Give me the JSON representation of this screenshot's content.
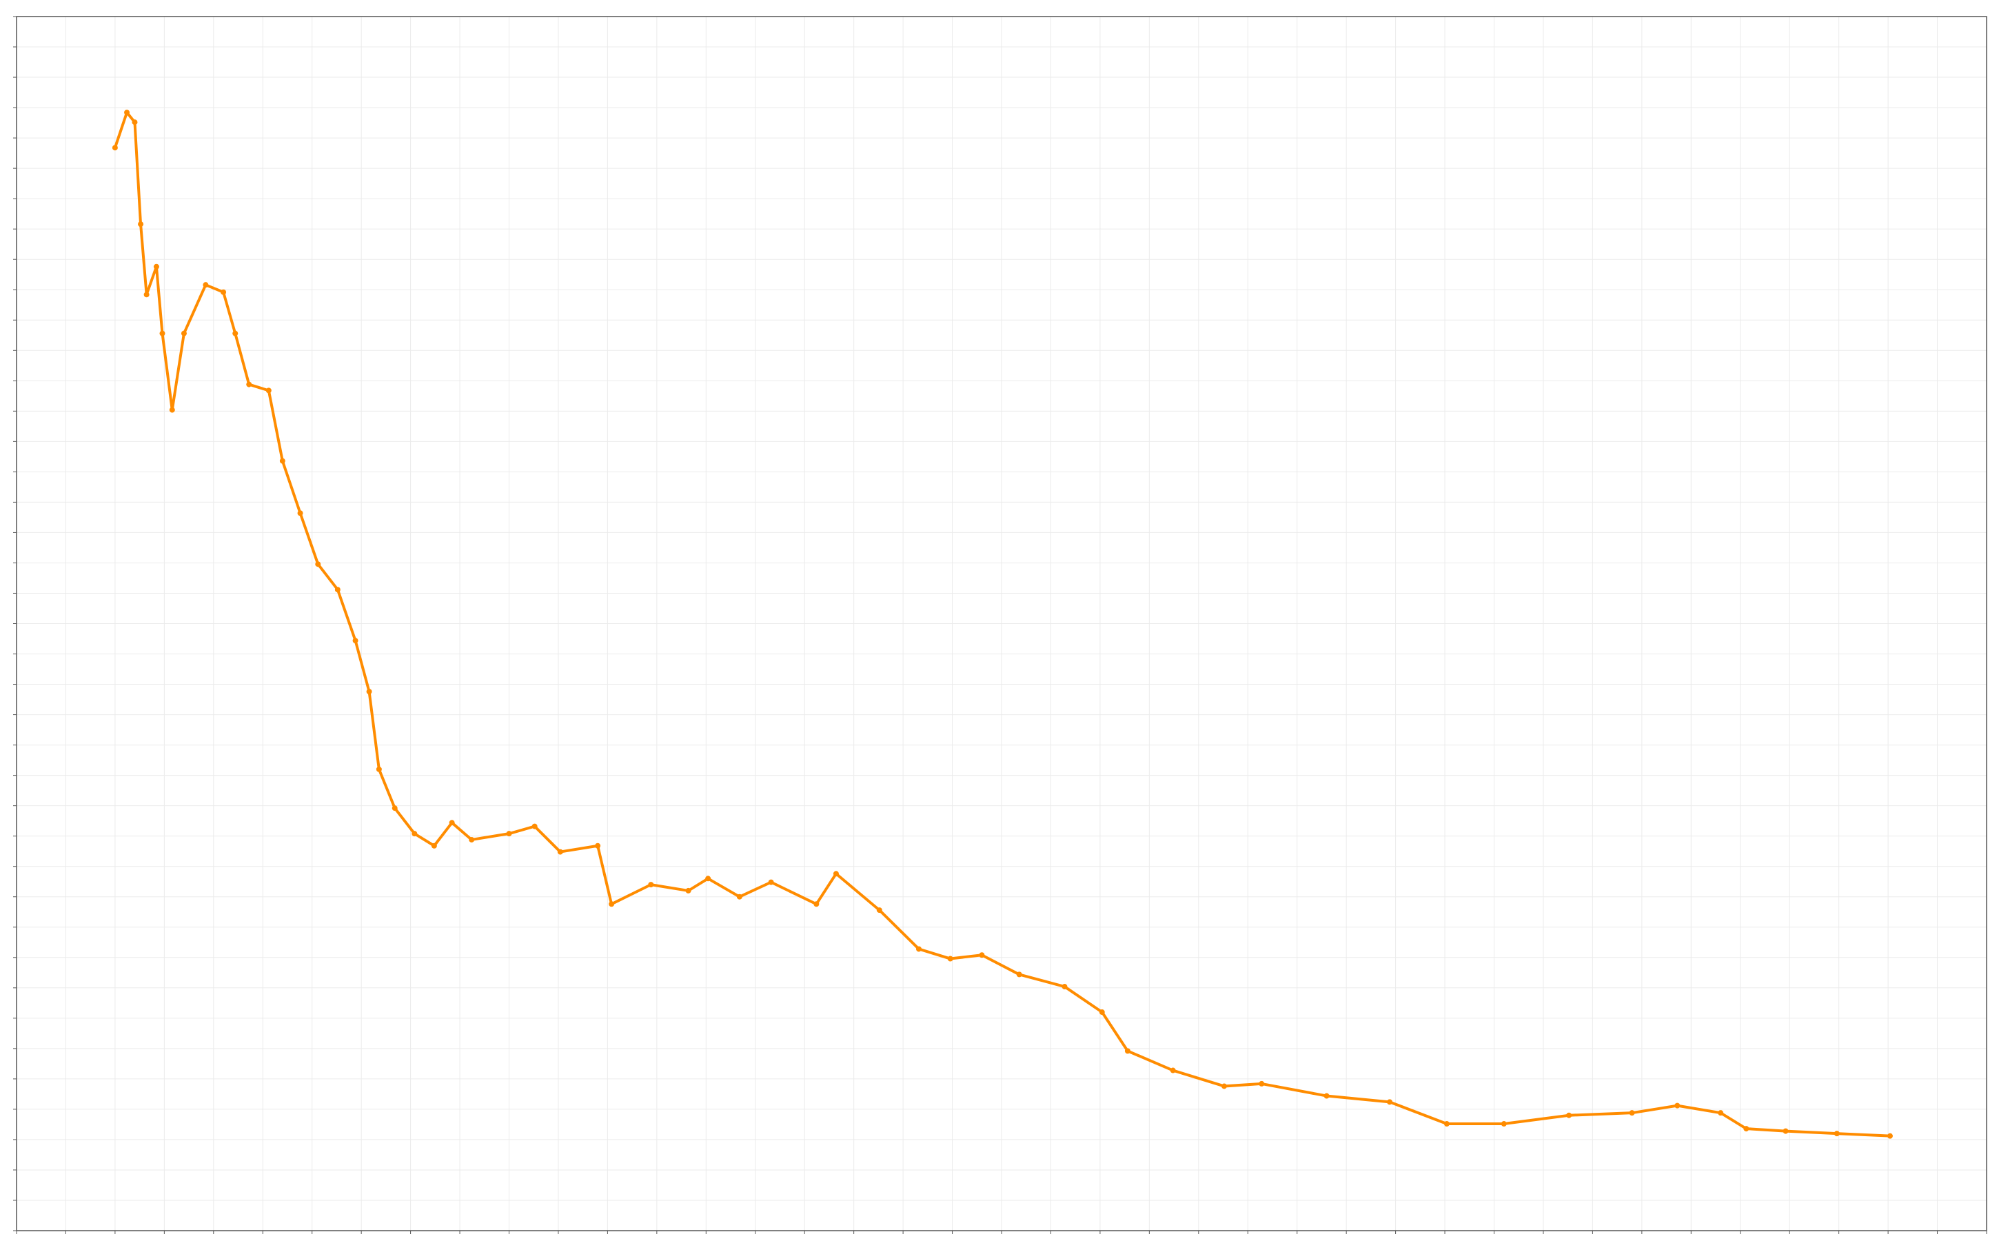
{
  "chart_data": {
    "type": "line",
    "xlim": [
      0,
      100
    ],
    "ylim": [
      0,
      100
    ],
    "xticks": [
      0,
      2.5,
      5,
      7.5,
      10,
      12.5,
      15,
      17.5,
      20,
      22.5,
      25,
      27.5,
      30,
      32.5,
      35,
      37.5,
      40,
      42.5,
      45,
      47.5,
      50,
      52.5,
      55,
      57.5,
      60,
      62.5,
      65,
      67.5,
      70,
      72.5,
      75,
      77.5,
      80,
      82.5,
      85,
      87.5,
      90,
      92.5,
      95,
      97.5,
      100
    ],
    "yticks": [
      0,
      2.5,
      5,
      7.5,
      10,
      12.5,
      15,
      17.5,
      20,
      22.5,
      25,
      27.5,
      30,
      32.5,
      35,
      37.5,
      40,
      42.5,
      45,
      47.5,
      50,
      52.5,
      55,
      57.5,
      60,
      62.5,
      65,
      67.5,
      70,
      72.5,
      75,
      77.5,
      80,
      82.5,
      85,
      87.5,
      90,
      92.5,
      95,
      97.5,
      100
    ],
    "grid": true,
    "x": [
      5.0,
      5.6,
      6.0,
      6.3,
      6.6,
      7.1,
      7.4,
      7.9,
      8.5,
      9.6,
      10.5,
      11.1,
      11.8,
      12.8,
      13.5,
      14.4,
      15.3,
      16.3,
      17.2,
      17.9,
      18.4,
      19.2,
      20.2,
      21.2,
      22.1,
      23.1,
      25.0,
      26.3,
      27.6,
      29.5,
      30.2,
      32.2,
      34.1,
      35.1,
      36.7,
      38.3,
      40.6,
      41.6,
      43.8,
      45.8,
      47.4,
      49.0,
      50.9,
      53.2,
      55.1,
      56.4,
      58.7,
      61.3,
      63.2,
      66.5,
      69.7,
      72.6,
      75.5,
      78.8,
      82.0,
      84.3,
      86.5,
      87.8,
      89.8,
      92.4,
      95.1
    ],
    "series": [
      {
        "color": "#ff8c00",
        "values": [
          89.2,
          92.1,
          91.3,
          82.9,
          77.1,
          79.4,
          73.9,
          67.6,
          73.9,
          77.9,
          77.3,
          73.9,
          69.7,
          69.2,
          63.4,
          59.1,
          54.9,
          52.8,
          48.6,
          44.4,
          38.0,
          34.8,
          32.7,
          31.7,
          33.6,
          32.2,
          32.7,
          33.3,
          31.2,
          31.7,
          26.9,
          28.5,
          28.0,
          29.0,
          27.5,
          28.7,
          26.9,
          29.4,
          26.4,
          23.2,
          22.4,
          22.7,
          21.1,
          20.1,
          18.0,
          14.8,
          13.2,
          11.9,
          12.1,
          11.1,
          10.6,
          8.8,
          8.8,
          9.5,
          9.7,
          10.3,
          9.7,
          8.4,
          8.2,
          8.0,
          7.8
        ]
      }
    ]
  }
}
